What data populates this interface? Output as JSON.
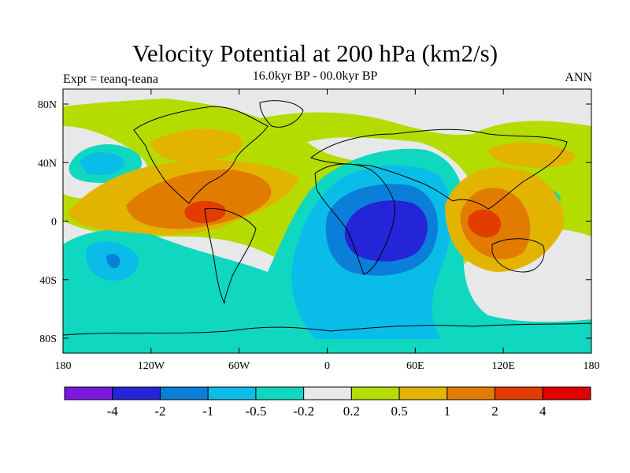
{
  "title": "Velocity Potential at 200 hPa (km2/s)",
  "subtitle": "16.0kyr BP - 00.0kyr BP",
  "experiment": "Expt = teanq-teana",
  "season": "ANN",
  "chart_data": {
    "type": "heatmap",
    "x_ticks": [
      "180",
      "120W",
      "60W",
      "0",
      "60E",
      "120E",
      "180"
    ],
    "y_ticks": [
      "80N",
      "40N",
      "0",
      "40S",
      "80S"
    ],
    "colorbar": {
      "labels": [
        "-4",
        "-2",
        "-1",
        "-0.5",
        "-0.2",
        "0.2",
        "0.5",
        "1",
        "2",
        "4"
      ],
      "colors": [
        "#7a18e0",
        "#2424d8",
        "#0a7ed8",
        "#0abde8",
        "#10d8c0",
        "#e8e8e8",
        "#b4dc00",
        "#e2b400",
        "#e27c00",
        "#e23c00",
        "#e00000"
      ]
    },
    "field_description_colors": {
      "strong_negative": "#2424d8",
      "negative": "#0a7ed8",
      "weak_negative": "#0abde8",
      "near_zero_neg": "#10d8c0",
      "neutral": "#e8e8e8",
      "near_zero_pos": "#b4dc00",
      "weak_positive": "#e2b400",
      "positive": "#e27c00",
      "strong_positive": "#e23c00"
    }
  }
}
